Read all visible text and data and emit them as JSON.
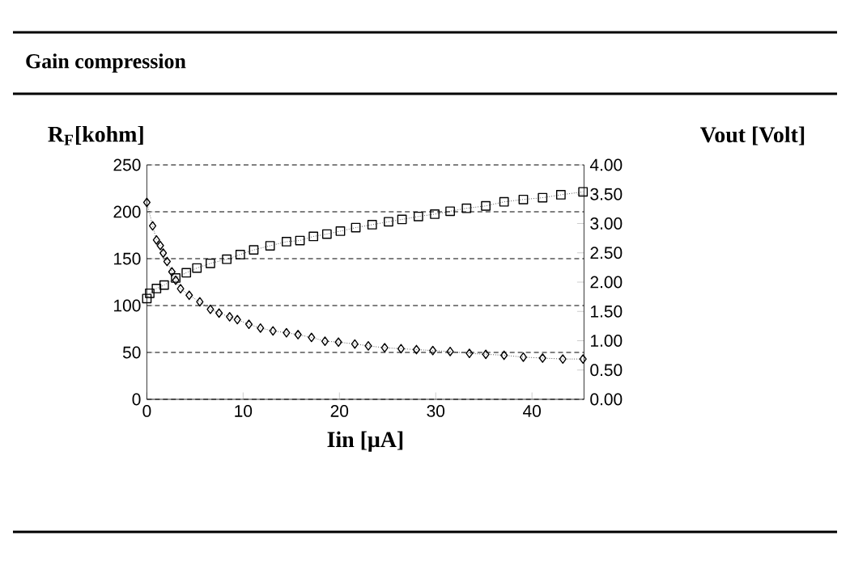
{
  "chart_data": {
    "type": "line",
    "title": "Gain compression",
    "xlabel": "Iin  [μA]",
    "ylabel": "R$_{F}$[kohm]",
    "y2label": "Vout  [Volt]",
    "xlim": [
      0,
      45.4
    ],
    "xticks": [
      0,
      10,
      20,
      30,
      40
    ],
    "ylim": [
      0,
      250
    ],
    "yticks": [
      0,
      50,
      100,
      150,
      200,
      250
    ],
    "y2lim": [
      0,
      4
    ],
    "y2ticks": [
      {
        "value": 0,
        "label": "0.00"
      },
      {
        "value": 0.5,
        "label": "0.50"
      },
      {
        "value": 1,
        "label": "1.00"
      },
      {
        "value": 1.5,
        "label": "1.50"
      },
      {
        "value": 2,
        "label": "2.00"
      },
      {
        "value": 2.5,
        "label": "2.50"
      },
      {
        "value": 3,
        "label": "3.00"
      },
      {
        "value": 3.5,
        "label": "3.50"
      },
      {
        "value": 4,
        "label": "4.00"
      }
    ],
    "grid": "y",
    "line_style": "dotted",
    "series": [
      {
        "color": "#000000",
        "marker": "diamond",
        "x": [
          0,
          0.6,
          1.0,
          1.4,
          1.7,
          2.1,
          2.6,
          3.0,
          3.5,
          4.4,
          5.5,
          6.6,
          7.5,
          8.6,
          9.4,
          10.6,
          11.8,
          13.1,
          14.5,
          15.7,
          17.1,
          18.5,
          19.9,
          21.6,
          23.0,
          24.7,
          26.4,
          28.0,
          29.7,
          31.5,
          33.5,
          35.2,
          37.1,
          39.1,
          41.1,
          43.2,
          45.3
        ],
        "values": [
          210,
          185,
          170,
          164,
          156,
          147,
          136,
          127,
          118,
          111,
          104,
          96,
          92,
          88,
          85,
          80,
          76,
          73,
          71,
          69,
          66,
          62,
          61,
          59,
          57,
          55,
          54,
          53,
          52,
          51,
          49,
          48,
          47,
          45,
          44,
          43,
          43
        ]
      },
      {
        "color": "#000000",
        "marker": "square",
        "axis": "y2",
        "x": [
          0,
          0.3,
          1.0,
          1.8,
          3.0,
          4.1,
          5.2,
          6.6,
          8.3,
          9.7,
          11.1,
          12.8,
          14.5,
          15.9,
          17.3,
          18.7,
          20.1,
          21.7,
          23.4,
          25.1,
          26.5,
          28.2,
          29.9,
          31.5,
          33.2,
          35.2,
          37.1,
          39.1,
          41.1,
          43.0,
          45.3
        ],
        "values": [
          1.72,
          1.81,
          1.89,
          1.95,
          2.07,
          2.16,
          2.24,
          2.32,
          2.39,
          2.47,
          2.55,
          2.62,
          2.69,
          2.71,
          2.78,
          2.82,
          2.87,
          2.93,
          2.98,
          3.03,
          3.07,
          3.12,
          3.16,
          3.21,
          3.26,
          3.3,
          3.37,
          3.41,
          3.44,
          3.49,
          3.54
        ]
      }
    ]
  }
}
